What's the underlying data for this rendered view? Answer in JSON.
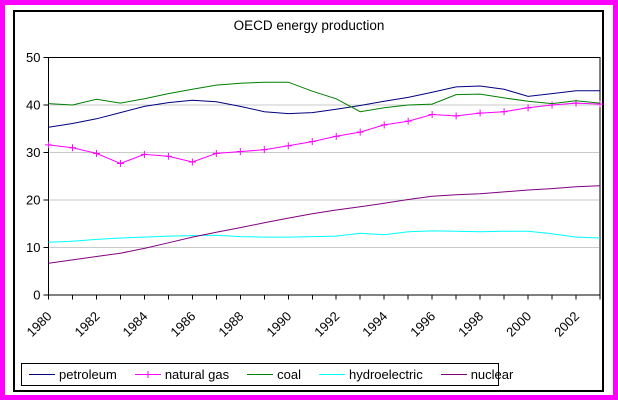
{
  "window": {
    "outer_border_color": "#ff00ff",
    "inner_frame_color": "#000000",
    "background_color": "#ffffff",
    "gridline_color": "#c9c9c9"
  },
  "chart_data": {
    "type": "line",
    "title": "OECD energy production",
    "xlabel": "",
    "ylabel": "",
    "xlim": [
      1980,
      2003
    ],
    "ylim": [
      0,
      50
    ],
    "y_ticks": [
      0,
      10,
      20,
      30,
      40,
      50
    ],
    "x_tick_labels": [
      "1980",
      "1982",
      "1984",
      "1986",
      "1988",
      "1990",
      "1992",
      "1994",
      "1996",
      "1998",
      "2000",
      "2002"
    ],
    "x_tick_label_rotation_deg": 45,
    "grid": true,
    "legend_position": "bottom",
    "x": [
      1980,
      1981,
      1982,
      1983,
      1984,
      1985,
      1986,
      1987,
      1988,
      1989,
      1990,
      1991,
      1992,
      1993,
      1994,
      1995,
      1996,
      1997,
      1998,
      1999,
      2000,
      2001,
      2002,
      2003
    ],
    "series": [
      {
        "name": "petroleum",
        "color": "#000080",
        "marker": "none",
        "values": [
          35.3,
          36.1,
          37.1,
          38.4,
          39.7,
          40.5,
          41.0,
          40.7,
          39.7,
          38.6,
          38.2,
          38.4,
          39.1,
          39.9,
          40.8,
          41.6,
          42.7,
          43.8,
          44.0,
          43.3,
          41.8,
          42.4,
          43.0,
          43.0
        ]
      },
      {
        "name": "natural gas",
        "color": "#ff00ff",
        "marker": "plus",
        "values": [
          31.6,
          31.0,
          29.8,
          27.7,
          29.6,
          29.2,
          28.0,
          29.8,
          30.2,
          30.6,
          31.4,
          32.3,
          33.4,
          34.3,
          35.8,
          36.6,
          38.0,
          37.7,
          38.3,
          38.6,
          39.4,
          40.0,
          40.4,
          40.2
        ]
      },
      {
        "name": "coal",
        "color": "#008000",
        "marker": "none",
        "values": [
          40.3,
          40.0,
          41.2,
          40.4,
          41.3,
          42.4,
          43.3,
          44.2,
          44.6,
          44.8,
          44.8,
          42.9,
          41.3,
          38.6,
          39.4,
          40.0,
          40.2,
          42.2,
          42.3,
          41.5,
          40.8,
          40.3,
          40.9,
          40.4
        ]
      },
      {
        "name": "hydroelectric",
        "color": "#00ffff",
        "marker": "none",
        "values": [
          11.1,
          11.3,
          11.7,
          12.0,
          12.2,
          12.4,
          12.5,
          12.6,
          12.3,
          12.2,
          12.2,
          12.3,
          12.4,
          13.0,
          12.7,
          13.3,
          13.5,
          13.4,
          13.3,
          13.4,
          13.4,
          12.9,
          12.2,
          12.0
        ]
      },
      {
        "name": "nuclear",
        "color": "#800080",
        "marker": "none",
        "values": [
          6.7,
          7.4,
          8.1,
          8.8,
          9.8,
          11.0,
          12.2,
          13.2,
          14.2,
          15.2,
          16.2,
          17.1,
          17.9,
          18.6,
          19.3,
          20.1,
          20.8,
          21.1,
          21.3,
          21.7,
          22.1,
          22.4,
          22.8,
          23.0
        ]
      }
    ]
  }
}
